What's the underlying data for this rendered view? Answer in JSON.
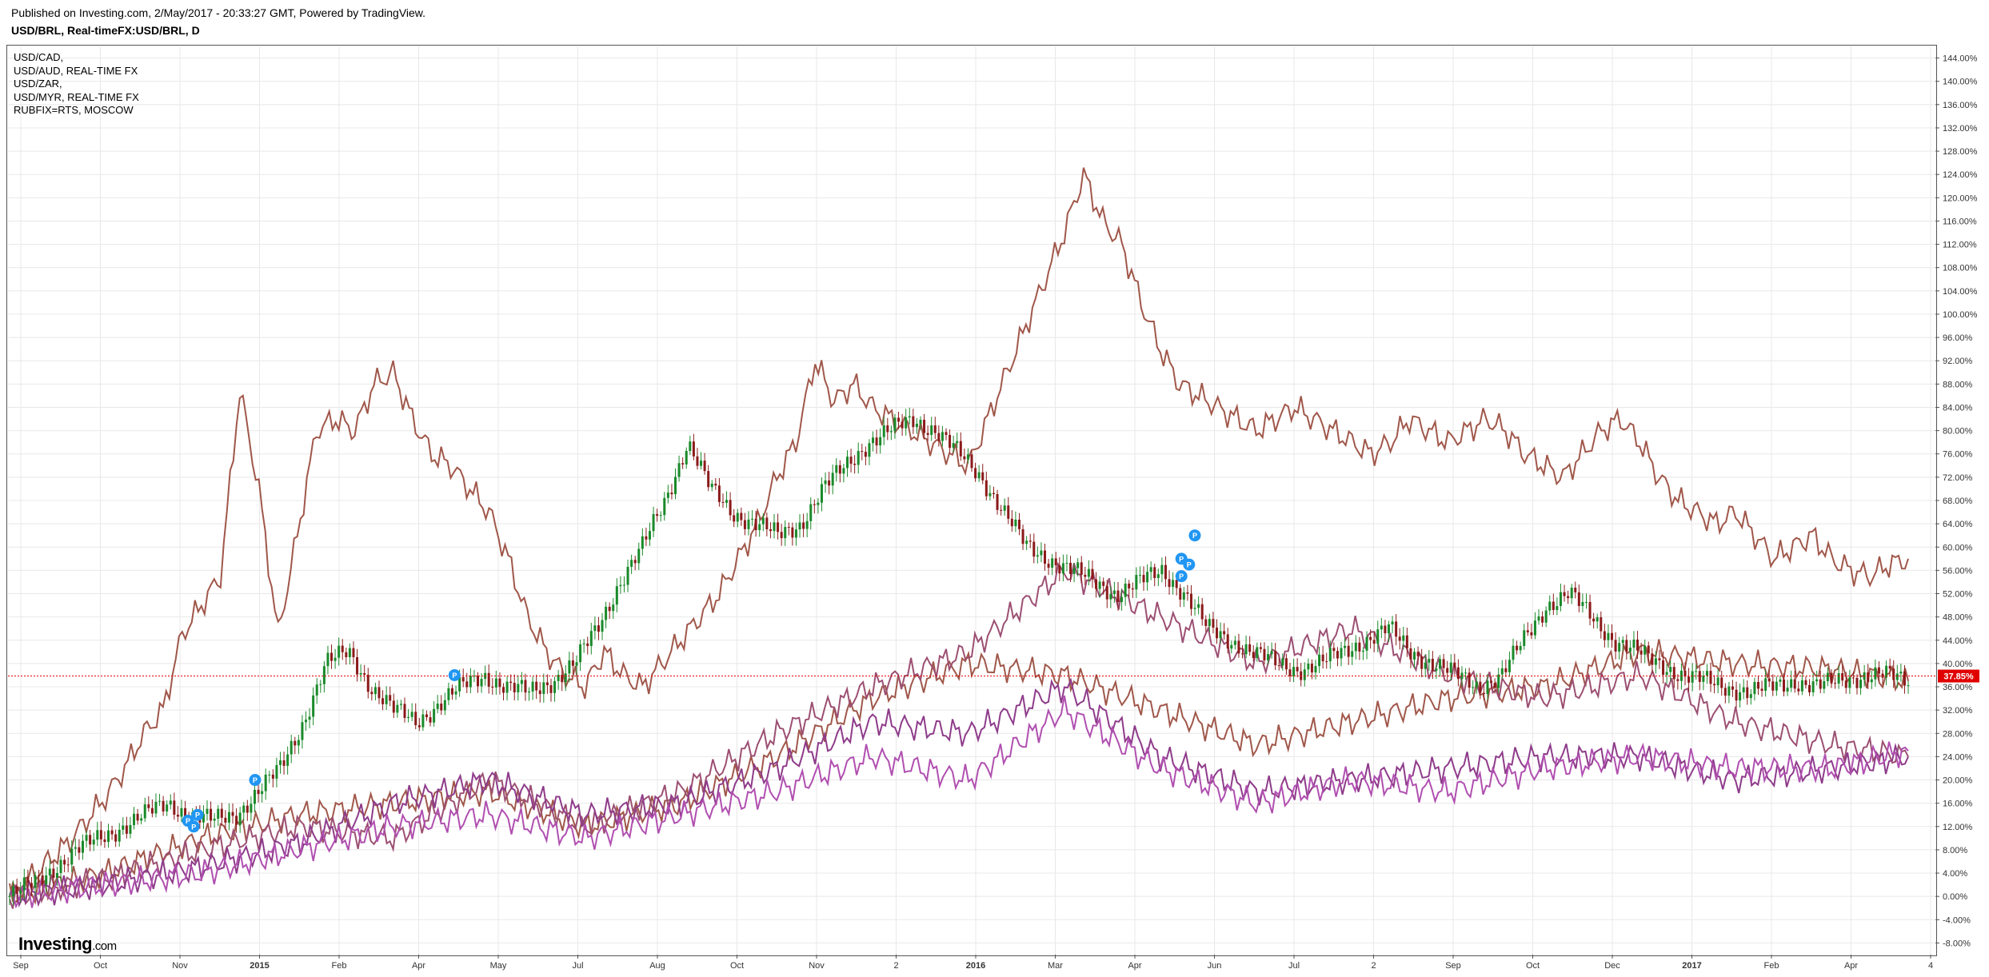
{
  "header": {
    "published": "Published on Investing.com, 2/May/2017 - 20:33:27 GMT, Powered by TradingView.",
    "symbol": "USD/BRL, Real-timeFX:USD/BRL, D"
  },
  "legend": [
    "USD/CAD,",
    "USD/AUD, REAL-TIME FX",
    "USD/ZAR,",
    "USD/MYR, REAL-TIME FX",
    "RUBFIX=RTS, MOSCOW"
  ],
  "logo": {
    "main": "Investing",
    "suffix": ".com"
  },
  "colors": {
    "candle_up": "#1a8a2a",
    "candle_down": "#8b1a1a",
    "grid": "#e8e8e8",
    "price_line": "#e00000",
    "price_badge": "#e00000",
    "marker": "#2196f3"
  },
  "price_badge": "37.85%",
  "marker_label": "P",
  "chart_data": {
    "type": "line",
    "x_ticks": [
      {
        "label": "Sep",
        "bold": false
      },
      {
        "label": "Oct",
        "bold": false
      },
      {
        "label": "Nov",
        "bold": false
      },
      {
        "label": "2015",
        "bold": true
      },
      {
        "label": "Feb",
        "bold": false
      },
      {
        "label": "Apr",
        "bold": false
      },
      {
        "label": "May",
        "bold": false
      },
      {
        "label": "Jul",
        "bold": false
      },
      {
        "label": "Aug",
        "bold": false
      },
      {
        "label": "Oct",
        "bold": false
      },
      {
        "label": "Nov",
        "bold": false
      },
      {
        "label": "2",
        "bold": false
      },
      {
        "label": "2016",
        "bold": true
      },
      {
        "label": "Mar",
        "bold": false
      },
      {
        "label": "Apr",
        "bold": false
      },
      {
        "label": "Jun",
        "bold": false
      },
      {
        "label": "Jul",
        "bold": false
      },
      {
        "label": "2",
        "bold": false
      },
      {
        "label": "Sep",
        "bold": false
      },
      {
        "label": "Oct",
        "bold": false
      },
      {
        "label": "Dec",
        "bold": false
      },
      {
        "label": "2017",
        "bold": true
      },
      {
        "label": "Feb",
        "bold": false
      },
      {
        "label": "Apr",
        "bold": false
      },
      {
        "label": "4",
        "bold": false
      }
    ],
    "y_ticks": [
      "144.00%",
      "140.00%",
      "136.00%",
      "132.00%",
      "128.00%",
      "124.00%",
      "120.00%",
      "116.00%",
      "112.00%",
      "108.00%",
      "104.00%",
      "100.00%",
      "96.00%",
      "92.00%",
      "88.00%",
      "84.00%",
      "80.00%",
      "76.00%",
      "72.00%",
      "68.00%",
      "64.00%",
      "60.00%",
      "56.00%",
      "52.00%",
      "48.00%",
      "44.00%",
      "40.00%",
      "36.00%",
      "32.00%",
      "28.00%",
      "24.00%",
      "20.00%",
      "16.00%",
      "12.00%",
      "8.00%",
      "4.00%",
      "0.00%",
      "-4.00%",
      "-8.00%"
    ],
    "ylim": [
      -10,
      146
    ],
    "x_index_range": [
      0,
      100
    ],
    "series": [
      {
        "color": "#a0574a",
        "x": [
          0,
          1,
          2,
          3,
          4,
          5,
          6,
          7,
          8,
          9,
          10,
          11,
          12,
          13,
          14,
          15,
          16,
          17,
          18,
          19,
          20,
          21,
          22,
          23,
          24,
          25,
          26,
          27,
          28,
          29,
          30,
          31,
          32,
          33,
          34,
          35,
          36,
          37,
          38,
          39,
          40,
          41,
          42,
          43,
          44,
          45,
          46,
          47,
          48,
          49,
          50,
          51,
          52,
          53,
          54,
          55,
          56,
          57,
          58,
          59,
          60,
          61,
          62,
          63,
          64,
          65,
          66,
          67,
          68,
          69,
          70,
          71,
          72,
          73,
          74,
          75,
          76,
          77,
          78,
          79,
          80,
          81,
          82,
          83,
          84,
          85,
          86,
          87,
          88,
          89,
          90,
          91,
          92,
          93,
          94,
          95,
          96,
          97,
          98,
          99
        ],
        "y": [
          0,
          3,
          6,
          9,
          13,
          17,
          22,
          28,
          32,
          45,
          50,
          55,
          87,
          70,
          45,
          62,
          80,
          82,
          80,
          88,
          90,
          82,
          76,
          74,
          70,
          66,
          58,
          48,
          42,
          38,
          36,
          42,
          38,
          36,
          40,
          44,
          48,
          52,
          58,
          64,
          72,
          78,
          92,
          85,
          88,
          84,
          82,
          80,
          78,
          76,
          74,
          82,
          90,
          98,
          106,
          114,
          124,
          116,
          112,
          102,
          94,
          88,
          86,
          84,
          82,
          80,
          82,
          84,
          82,
          80,
          78,
          76,
          78,
          82,
          80,
          78,
          80,
          82,
          80,
          76,
          74,
          72,
          76,
          80,
          82,
          78,
          72,
          68,
          66,
          64,
          66,
          62,
          58,
          60,
          62,
          58,
          56,
          55,
          57,
          58
        ]
      },
      {
        "color": "#a0574a",
        "x": [
          0,
          5,
          10,
          15,
          20,
          25,
          30,
          35,
          40,
          45,
          50,
          55,
          60,
          65,
          70,
          75,
          80,
          85,
          90,
          95,
          99
        ],
        "y": [
          0,
          4,
          10,
          14,
          16,
          18,
          12,
          16,
          24,
          34,
          40,
          38,
          32,
          26,
          30,
          34,
          36,
          42,
          40,
          39,
          37
        ]
      },
      {
        "color": "#9c4f72",
        "x": [
          0,
          5,
          10,
          15,
          20,
          25,
          30,
          35,
          40,
          45,
          50,
          55,
          60,
          65,
          70,
          75,
          80,
          85,
          90,
          95,
          99
        ],
        "y": [
          0,
          3,
          8,
          12,
          10,
          20,
          12,
          18,
          28,
          36,
          42,
          56,
          48,
          40,
          46,
          38,
          34,
          38,
          30,
          26,
          24
        ]
      },
      {
        "color": "#8e3b8a",
        "x": [
          0,
          5,
          10,
          15,
          20,
          25,
          30,
          35,
          40,
          45,
          50,
          55,
          60,
          65,
          70,
          75,
          80,
          85,
          90,
          95,
          99
        ],
        "y": [
          0,
          2,
          5,
          9,
          16,
          20,
          14,
          16,
          22,
          30,
          28,
          36,
          24,
          18,
          20,
          22,
          24,
          24,
          20,
          22,
          24
        ]
      },
      {
        "color": "#b04fb0",
        "x": [
          0,
          5,
          10,
          15,
          20,
          25,
          30,
          35,
          40,
          45,
          50,
          55,
          60,
          65,
          70,
          75,
          80,
          85,
          90,
          95,
          99
        ],
        "y": [
          0,
          2,
          4,
          8,
          12,
          14,
          10,
          14,
          18,
          24,
          20,
          32,
          22,
          16,
          20,
          18,
          22,
          24,
          22,
          22,
          25
        ]
      }
    ],
    "candles_close": [
      0,
      2,
      5,
      8,
      10,
      12,
      14,
      16,
      14,
      13,
      14,
      18,
      22,
      30,
      40,
      42,
      36,
      32,
      30,
      33,
      36,
      38,
      36,
      35,
      37,
      40,
      46,
      54,
      60,
      68,
      78,
      70,
      66,
      64,
      62,
      64,
      70,
      74,
      78,
      80,
      82,
      80,
      76,
      72,
      66,
      60,
      58,
      56,
      54,
      52,
      54,
      56,
      52,
      46,
      44,
      42,
      40,
      39,
      40,
      42,
      44,
      46,
      42,
      40,
      38,
      36,
      38,
      44,
      50,
      52,
      48,
      44,
      42,
      40,
      38,
      37,
      36,
      35,
      36,
      37,
      36,
      37,
      38,
      38,
      37
    ],
    "markers": [
      {
        "x": 9.3,
        "y": 13
      },
      {
        "x": 9.8,
        "y": 14
      },
      {
        "x": 9.6,
        "y": 12
      },
      {
        "x": 12.8,
        "y": 20
      },
      {
        "x": 23.2,
        "y": 38
      },
      {
        "x": 61.1,
        "y": 55
      },
      {
        "x": 61.5,
        "y": 57
      },
      {
        "x": 61.1,
        "y": 58
      },
      {
        "x": 61.8,
        "y": 62
      }
    ],
    "current_value": 37.85
  }
}
